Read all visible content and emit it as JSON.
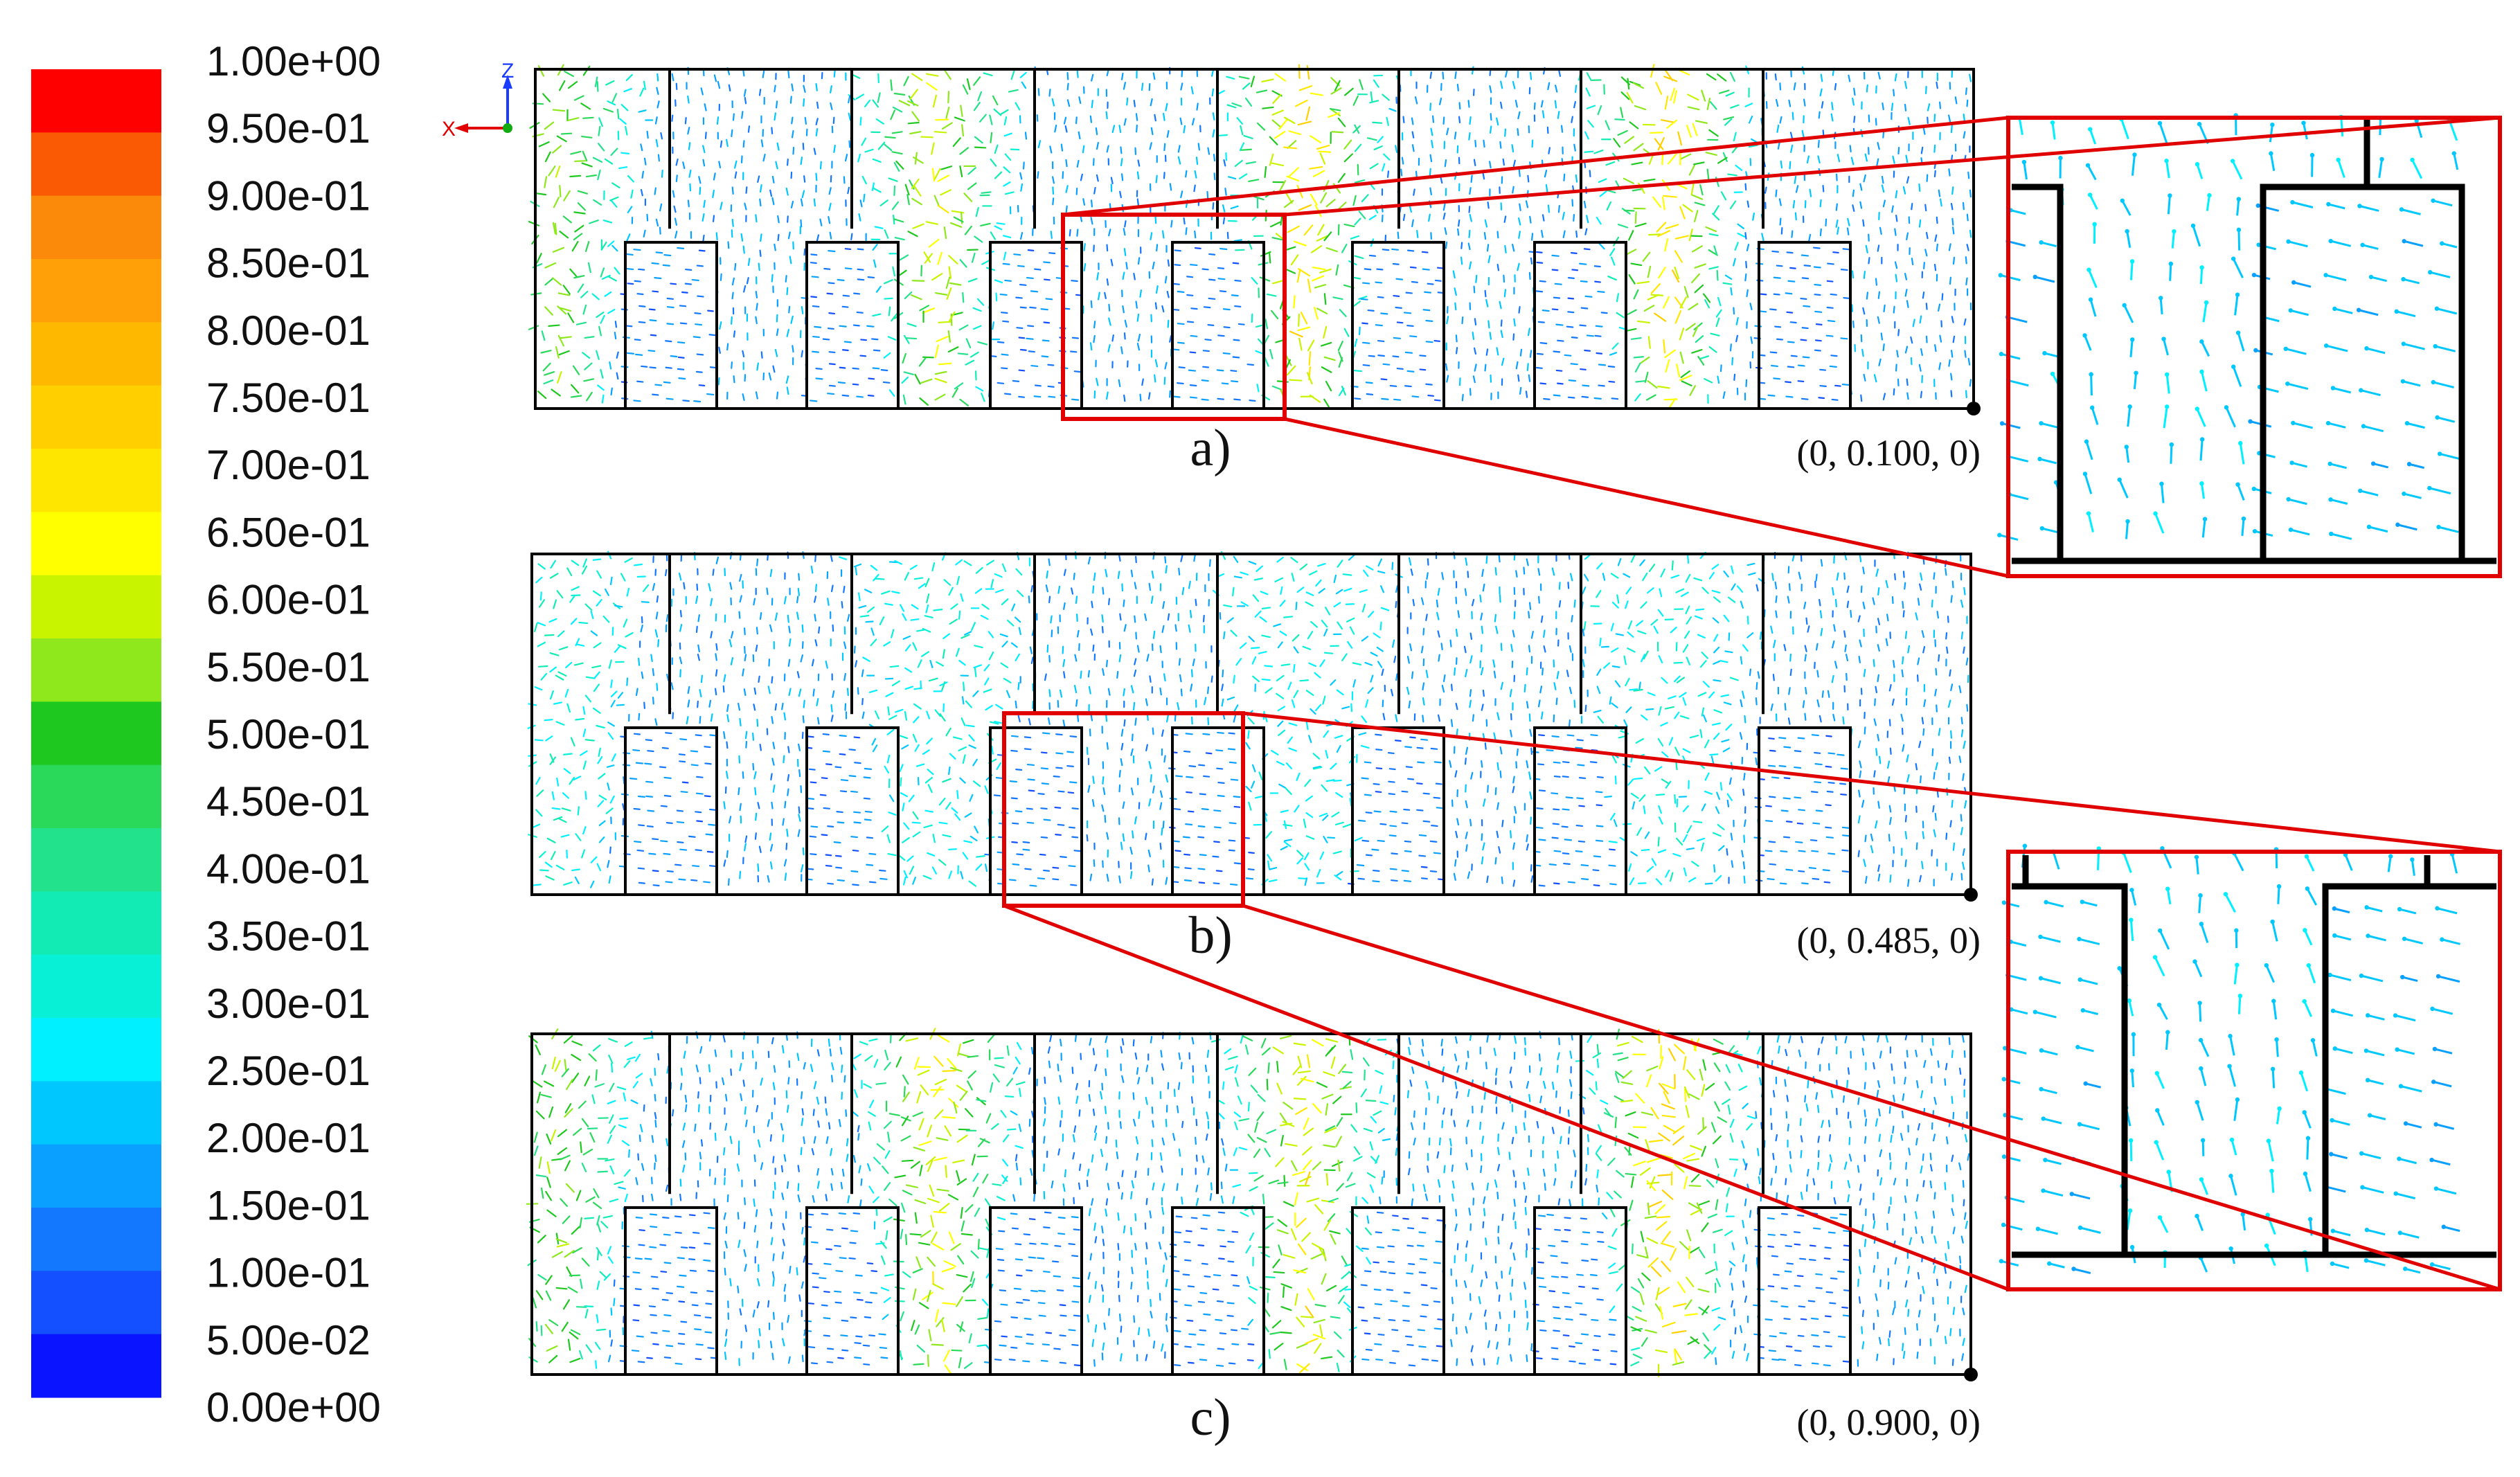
{
  "colorbar": {
    "ticks": [
      "1.00e+00",
      "9.50e-01",
      "9.00e-01",
      "8.50e-01",
      "8.00e-01",
      "7.50e-01",
      "7.00e-01",
      "6.50e-01",
      "6.00e-01",
      "5.50e-01",
      "5.00e-01",
      "4.50e-01",
      "4.00e-01",
      "3.50e-01",
      "3.00e-01",
      "2.50e-01",
      "2.00e-01",
      "1.50e-01",
      "1.00e-01",
      "5.00e-02",
      "0.00e+00"
    ],
    "colors": [
      "#ff0000",
      "#fb5a05",
      "#fb8a0b",
      "#ffa008",
      "#ffb800",
      "#ffcf00",
      "#ffe600",
      "#ffff00",
      "#c8f400",
      "#8ee81c",
      "#1fc81f",
      "#2ad85a",
      "#22e28c",
      "#12ecb4",
      "#08f0d6",
      "#00f0ff",
      "#00c8ff",
      "#0aa0ff",
      "#1478ff",
      "#1450ff",
      "#0a14ff"
    ]
  },
  "axes_triad": {
    "z": "Z",
    "x": "X"
  },
  "panels": [
    {
      "id": "a",
      "label": "a)",
      "coord": "(0, 0.100, 0)",
      "hot": [
        0.55,
        0.62,
        0.7,
        0.72
      ]
    },
    {
      "id": "b",
      "label": "b)",
      "coord": "(0, 0.485, 0)",
      "hot": [
        0.32,
        0.3,
        0.28,
        0.3
      ]
    },
    {
      "id": "c",
      "label": "c)",
      "coord": "(0, 0.900, 0)",
      "hot": [
        0.55,
        0.65,
        0.66,
        0.74
      ]
    }
  ],
  "colors": {
    "outline": "#000000",
    "highlight": "#e00000"
  }
}
